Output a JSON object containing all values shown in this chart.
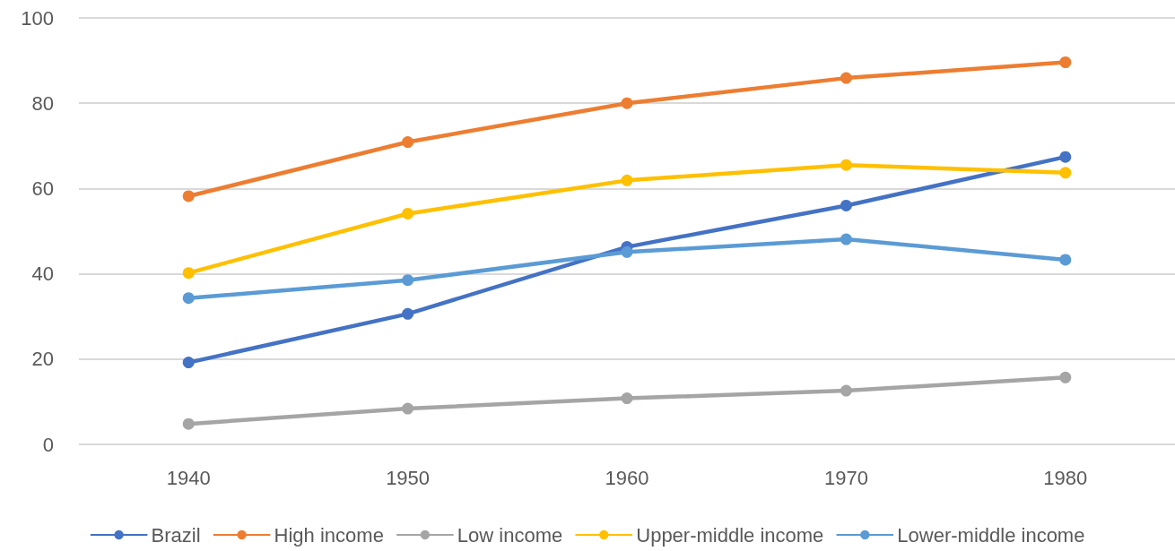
{
  "chart_data": {
    "type": "line",
    "categories": [
      "1940",
      "1950",
      "1960",
      "1970",
      "1980"
    ],
    "series": [
      {
        "name": "Brazil",
        "color": "#4472c4",
        "values": [
          19.2,
          30.6,
          46.3,
          56.0,
          67.4
        ]
      },
      {
        "name": "High income",
        "color": "#ed7d31",
        "values": [
          58.2,
          70.9,
          80.0,
          85.9,
          89.6
        ]
      },
      {
        "name": "Low income",
        "color": "#a5a5a5",
        "values": [
          4.8,
          8.4,
          10.8,
          12.6,
          15.7
        ]
      },
      {
        "name": "Upper-middle income",
        "color": "#ffc000",
        "values": [
          40.2,
          54.1,
          61.9,
          65.5,
          63.7
        ]
      },
      {
        "name": "Lower-middle income",
        "color": "#5b9bd5",
        "values": [
          34.3,
          38.5,
          45.1,
          48.1,
          43.3
        ]
      }
    ],
    "ylim": [
      0,
      100
    ],
    "yticks": [
      0,
      20,
      40,
      60,
      80,
      100
    ],
    "grid": "y",
    "legend": "bottom",
    "marker": "circle",
    "line_style": "solid"
  }
}
